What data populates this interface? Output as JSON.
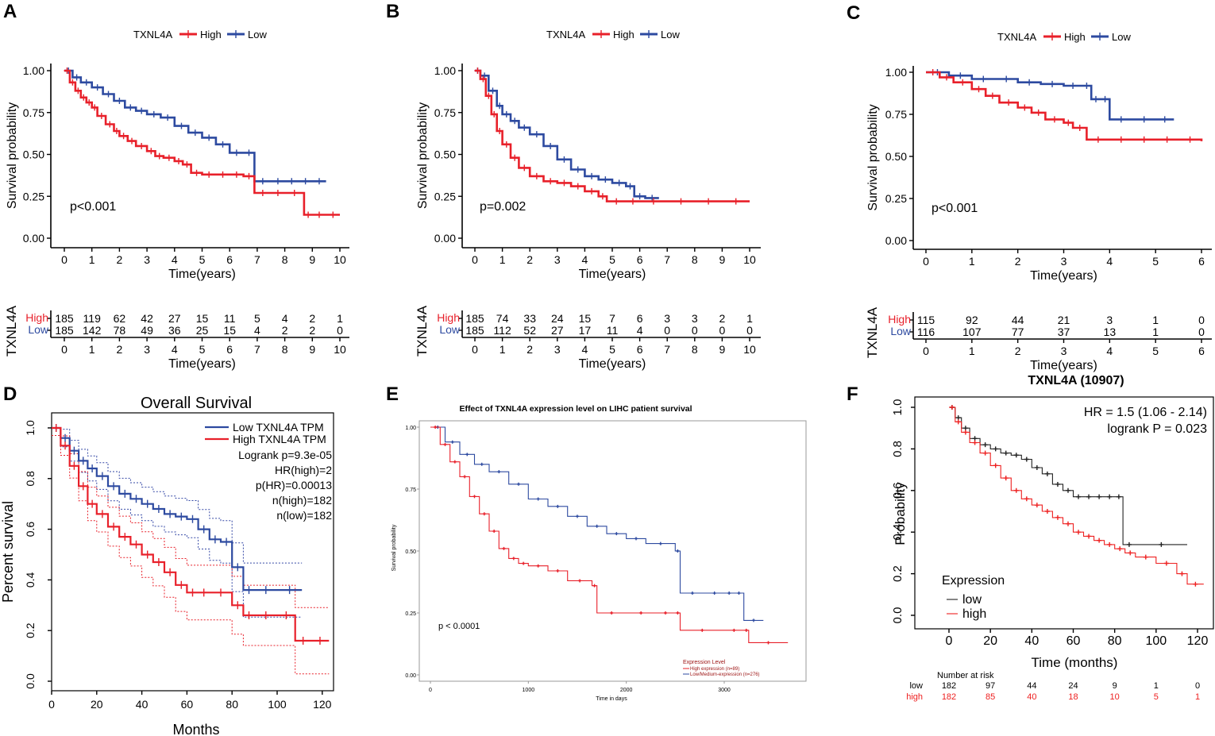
{
  "colors": {
    "high": "#e8202a",
    "low": "#2d4aa0",
    "kmf_low": "#222222",
    "kmf_high": "#ee2020",
    "gepia_ci_high": "#e8202a",
    "gepia_ci_low": "#3347a5",
    "darkred": "#9b1010"
  },
  "chart_data": [
    {
      "panel": "A",
      "type": "line",
      "legend": {
        "title": "TXNL4A",
        "high": "High",
        "low": "Low"
      },
      "ylabel": "Survival probability",
      "xlabel": "Time(years)",
      "xlim": [
        0,
        10
      ],
      "ylim": [
        0,
        1
      ],
      "xticks": [
        "0",
        "1",
        "2",
        "3",
        "4",
        "5",
        "6",
        "7",
        "8",
        "9",
        "10"
      ],
      "yticks": [
        "0.00",
        "0.25",
        "0.50",
        "0.75",
        "1.00"
      ],
      "pvalue": "p<0.001",
      "series": [
        {
          "name": "High",
          "x": [
            0,
            0.2,
            0.4,
            0.6,
            0.8,
            1,
            1.2,
            1.5,
            1.8,
            2,
            2.3,
            2.6,
            3,
            3.3,
            3.6,
            4,
            4.3,
            4.6,
            5,
            5.5,
            6,
            6.5,
            6.9,
            7.5,
            8,
            8.7,
            9,
            9.5,
            10
          ],
          "y": [
            1,
            0.93,
            0.88,
            0.84,
            0.81,
            0.78,
            0.73,
            0.68,
            0.64,
            0.61,
            0.58,
            0.55,
            0.52,
            0.49,
            0.48,
            0.46,
            0.44,
            0.39,
            0.38,
            0.38,
            0.38,
            0.37,
            0.27,
            0.27,
            0.27,
            0.14,
            0.14,
            0.14,
            0.14
          ]
        },
        {
          "name": "Low",
          "x": [
            0,
            0.3,
            0.6,
            1,
            1.4,
            1.8,
            2.2,
            2.6,
            3,
            3.5,
            4,
            4.5,
            5,
            5.5,
            6,
            6.5,
            6.9,
            7.5,
            8,
            8.5,
            9,
            9.5
          ],
          "y": [
            1,
            0.96,
            0.93,
            0.9,
            0.86,
            0.82,
            0.78,
            0.76,
            0.74,
            0.72,
            0.67,
            0.63,
            0.6,
            0.56,
            0.51,
            0.51,
            0.34,
            0.34,
            0.34,
            0.34,
            0.34,
            0.34
          ]
        }
      ],
      "risk_table": {
        "label": "TXNL4A",
        "high": [
          "185",
          "119",
          "62",
          "42",
          "27",
          "15",
          "11",
          "5",
          "4",
          "2",
          "1"
        ],
        "low": [
          "185",
          "142",
          "78",
          "49",
          "36",
          "25",
          "15",
          "4",
          "2",
          "2",
          "0"
        ]
      }
    },
    {
      "panel": "B",
      "type": "line",
      "legend": {
        "title": "TXNL4A",
        "high": "High",
        "low": "Low"
      },
      "ylabel": "Survival probability",
      "xlabel": "Time(years)",
      "xlim": [
        0,
        10
      ],
      "ylim": [
        0,
        1
      ],
      "xticks": [
        "0",
        "1",
        "2",
        "3",
        "4",
        "5",
        "6",
        "7",
        "8",
        "9",
        "10"
      ],
      "yticks": [
        "0.00",
        "0.25",
        "0.50",
        "0.75",
        "1.00"
      ],
      "pvalue": "p=0.002",
      "series": [
        {
          "name": "High",
          "x": [
            0,
            0.2,
            0.4,
            0.6,
            0.8,
            1,
            1.3,
            1.6,
            2,
            2.5,
            3,
            3.5,
            4,
            4.5,
            4.8,
            5.5,
            6,
            7,
            8,
            9,
            10
          ],
          "y": [
            1,
            0.95,
            0.85,
            0.74,
            0.64,
            0.56,
            0.48,
            0.42,
            0.37,
            0.34,
            0.33,
            0.31,
            0.28,
            0.25,
            0.22,
            0.22,
            0.22,
            0.22,
            0.22,
            0.22,
            0.22
          ]
        },
        {
          "name": "Low",
          "x": [
            0,
            0.2,
            0.5,
            0.8,
            1,
            1.3,
            1.6,
            2,
            2.5,
            3,
            3.5,
            4,
            4.5,
            5,
            5.5,
            5.8,
            6.2,
            6.7
          ],
          "y": [
            1,
            0.97,
            0.88,
            0.79,
            0.74,
            0.7,
            0.66,
            0.62,
            0.55,
            0.47,
            0.41,
            0.37,
            0.35,
            0.33,
            0.31,
            0.25,
            0.24,
            0.24
          ]
        }
      ],
      "risk_table": {
        "label": "TXNL4A",
        "high": [
          "185",
          "74",
          "33",
          "24",
          "15",
          "7",
          "6",
          "3",
          "3",
          "2",
          "1"
        ],
        "low": [
          "185",
          "112",
          "52",
          "27",
          "17",
          "11",
          "4",
          "0",
          "0",
          "0",
          "0"
        ]
      }
    },
    {
      "panel": "C",
      "type": "line",
      "legend": {
        "title": "TXNL4A",
        "high": "High",
        "low": "Low"
      },
      "ylabel": "Survival probability",
      "xlabel": "Time(years)",
      "xlim": [
        0,
        6
      ],
      "ylim": [
        0,
        1
      ],
      "xticks": [
        "0",
        "1",
        "2",
        "3",
        "4",
        "5",
        "6"
      ],
      "yticks": [
        "0.00",
        "0.25",
        "0.50",
        "0.75",
        "1.00"
      ],
      "pvalue": "p<0.001",
      "series": [
        {
          "name": "High",
          "x": [
            0,
            0.3,
            0.6,
            1,
            1.3,
            1.6,
            2,
            2.3,
            2.6,
            3,
            3.2,
            3.5,
            4,
            4.5,
            5,
            5.5,
            6
          ],
          "y": [
            1,
            0.97,
            0.94,
            0.9,
            0.86,
            0.82,
            0.79,
            0.76,
            0.72,
            0.7,
            0.67,
            0.6,
            0.6,
            0.6,
            0.6,
            0.6,
            0.59
          ]
        },
        {
          "name": "Low",
          "x": [
            0,
            0.5,
            1,
            1.5,
            2,
            2.5,
            3,
            3.4,
            3.6,
            3.8,
            4,
            4.5,
            5,
            5.4
          ],
          "y": [
            1,
            0.98,
            0.96,
            0.96,
            0.94,
            0.93,
            0.92,
            0.92,
            0.84,
            0.84,
            0.72,
            0.72,
            0.72,
            0.72
          ]
        }
      ],
      "risk_table": {
        "label": "TXNL4A",
        "high": [
          "115",
          "92",
          "44",
          "21",
          "3",
          "1",
          "0"
        ],
        "low": [
          "116",
          "107",
          "77",
          "37",
          "13",
          "1",
          "0"
        ]
      }
    },
    {
      "panel": "D",
      "type": "line",
      "title": "Overall Survival",
      "ylabel": "Percent survival",
      "xlabel": "Months",
      "xlim": [
        0,
        125
      ],
      "ylim": [
        0,
        1.05
      ],
      "xticks": [
        "0",
        "20",
        "40",
        "60",
        "80",
        "100",
        "120"
      ],
      "yticks": [
        "0.0",
        "0.2",
        "0.4",
        "0.6",
        "0.8",
        "1.0"
      ],
      "legend": [
        "Low TXNL4A TPM",
        "High TXNL4A TPM"
      ],
      "stats": [
        "Logrank p=9.3e-05",
        "HR(high)=2",
        "p(HR)=0.00013",
        "n(high)=182",
        "n(low)=182"
      ],
      "series": [
        {
          "name": "Low TXNL4A TPM",
          "x": [
            0,
            4,
            8,
            12,
            16,
            20,
            25,
            30,
            35,
            40,
            45,
            50,
            55,
            60,
            65,
            70,
            75,
            80,
            85,
            90,
            100,
            111
          ],
          "y": [
            1,
            0.96,
            0.91,
            0.87,
            0.84,
            0.81,
            0.77,
            0.74,
            0.72,
            0.7,
            0.68,
            0.66,
            0.65,
            0.64,
            0.6,
            0.56,
            0.55,
            0.45,
            0.36,
            0.36,
            0.36,
            0.36
          ]
        },
        {
          "name": "High TXNL4A TPM",
          "x": [
            0,
            4,
            8,
            12,
            16,
            20,
            25,
            30,
            35,
            40,
            45,
            50,
            55,
            60,
            65,
            70,
            80,
            85,
            90,
            100,
            108,
            115,
            123
          ],
          "y": [
            1,
            0.93,
            0.85,
            0.77,
            0.7,
            0.66,
            0.61,
            0.57,
            0.54,
            0.5,
            0.47,
            0.43,
            0.38,
            0.35,
            0.35,
            0.35,
            0.3,
            0.26,
            0.26,
            0.26,
            0.16,
            0.16,
            0.16
          ]
        }
      ]
    },
    {
      "panel": "E",
      "type": "line",
      "title": "Effect of TXNL4A expression level on LIHC patient survival",
      "ylabel": "Survival probability",
      "xlabel": "Time in days",
      "xlim": [
        0,
        3700
      ],
      "ylim": [
        0,
        1
      ],
      "xticks": [
        "0",
        "1000",
        "2000",
        "3000"
      ],
      "yticks": [
        "0.00",
        "0.25",
        "0.50",
        "0.75",
        "1.00"
      ],
      "pvalue": "p < 0.0001",
      "legend": {
        "title": "Expression Level",
        "high": "High expression (n=89)",
        "low": "Low/Medium-expression (n=276)"
      },
      "series": [
        {
          "name": "High expression (n=89)",
          "x": [
            0,
            100,
            200,
            300,
            400,
            500,
            600,
            700,
            800,
            900,
            1000,
            1200,
            1400,
            1650,
            1700,
            2000,
            2300,
            2500,
            2550,
            3000,
            3200,
            3250,
            3650
          ],
          "y": [
            1,
            0.93,
            0.86,
            0.8,
            0.72,
            0.65,
            0.58,
            0.51,
            0.47,
            0.45,
            0.44,
            0.42,
            0.38,
            0.36,
            0.25,
            0.25,
            0.25,
            0.25,
            0.18,
            0.18,
            0.18,
            0.13,
            0.13
          ]
        },
        {
          "name": "Low/Medium-expression (n=276)",
          "x": [
            0,
            150,
            300,
            450,
            600,
            800,
            1000,
            1200,
            1400,
            1600,
            1800,
            2000,
            2200,
            2500,
            2550,
            2800,
            3000,
            3100,
            3200,
            3400
          ],
          "y": [
            1,
            0.94,
            0.89,
            0.85,
            0.82,
            0.77,
            0.71,
            0.68,
            0.64,
            0.6,
            0.57,
            0.55,
            0.53,
            0.5,
            0.33,
            0.33,
            0.33,
            0.33,
            0.22,
            0.22
          ]
        }
      ]
    },
    {
      "panel": "F",
      "type": "line",
      "title": "TXNL4A (10907)",
      "ylabel": "Probability",
      "xlabel": "Time (months)",
      "xlim": [
        0,
        125
      ],
      "ylim": [
        0,
        1
      ],
      "xticks": [
        "0",
        "20",
        "40",
        "60",
        "80",
        "100",
        "120"
      ],
      "yticks": [
        "0.0",
        "0.2",
        "0.4",
        "0.6",
        "0.8",
        "1.0"
      ],
      "stats": [
        "HR = 1.5 (1.06 - 2.14)",
        "logrank P = 0.023"
      ],
      "legend": {
        "title": "Expression",
        "low": "low",
        "high": "high"
      },
      "series": [
        {
          "name": "low",
          "x": [
            0,
            3,
            6,
            10,
            15,
            20,
            25,
            30,
            35,
            40,
            45,
            50,
            55,
            60,
            65,
            70,
            75,
            80,
            84,
            90,
            115
          ],
          "y": [
            1,
            0.95,
            0.9,
            0.85,
            0.82,
            0.8,
            0.78,
            0.77,
            0.75,
            0.71,
            0.68,
            0.63,
            0.6,
            0.57,
            0.57,
            0.57,
            0.57,
            0.57,
            0.34,
            0.34,
            0.34
          ]
        },
        {
          "name": "high",
          "x": [
            0,
            3,
            6,
            10,
            15,
            20,
            25,
            30,
            35,
            40,
            45,
            50,
            55,
            60,
            65,
            70,
            75,
            80,
            85,
            90,
            100,
            110,
            115,
            123
          ],
          "y": [
            1,
            0.93,
            0.88,
            0.83,
            0.78,
            0.72,
            0.66,
            0.6,
            0.56,
            0.53,
            0.5,
            0.47,
            0.44,
            0.4,
            0.38,
            0.36,
            0.34,
            0.32,
            0.3,
            0.28,
            0.25,
            0.2,
            0.15,
            0.15
          ]
        }
      ],
      "risk_table": {
        "title": "Number at risk",
        "low_label": "low",
        "high_label": "high",
        "low": [
          "182",
          "97",
          "44",
          "24",
          "9",
          "1",
          "0"
        ],
        "high": [
          "182",
          "85",
          "40",
          "18",
          "10",
          "5",
          "1"
        ]
      }
    }
  ],
  "panel_letters": [
    "A",
    "B",
    "C",
    "D",
    "E",
    "F"
  ]
}
